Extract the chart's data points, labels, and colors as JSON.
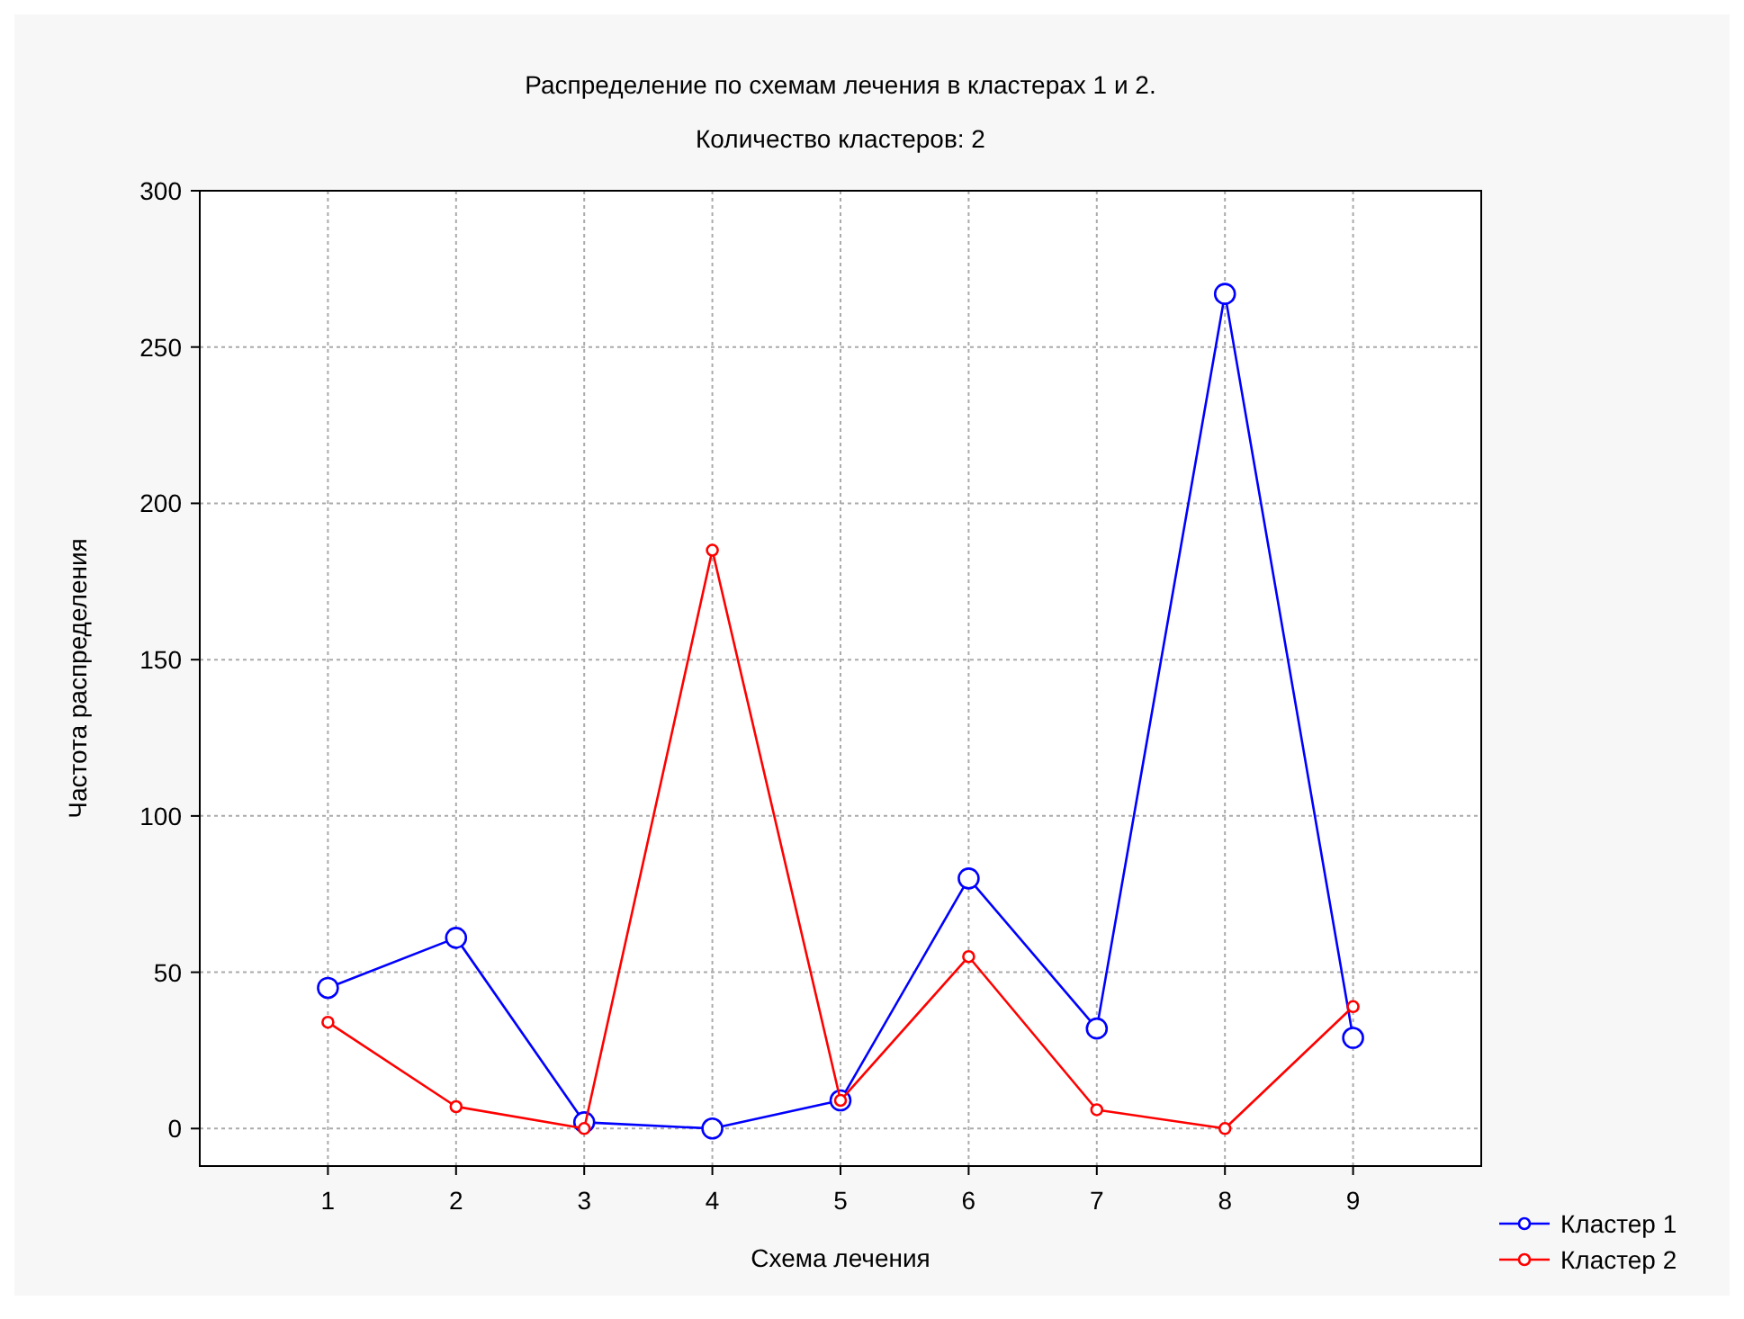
{
  "chart_data": {
    "type": "line",
    "title": "Распределение по схемам лечения в кластерах 1 и 2.",
    "subtitle": "Количество кластеров: 2",
    "xlabel": "Схема лечения",
    "ylabel": "Частота распределения",
    "x": [
      1,
      2,
      3,
      4,
      5,
      6,
      7,
      8,
      9
    ],
    "xlim": [
      0,
      10
    ],
    "xticks": [
      1,
      2,
      3,
      4,
      5,
      6,
      7,
      8,
      9
    ],
    "ylim": [
      -12,
      300
    ],
    "yticks": [
      0,
      50,
      100,
      150,
      200,
      250,
      300
    ],
    "series": [
      {
        "name": "Кластер 1",
        "color": "#0000ff",
        "values": [
          45,
          61,
          2,
          0,
          9,
          80,
          32,
          267,
          29
        ]
      },
      {
        "name": "Кластер 2",
        "color": "#ff0000",
        "values": [
          34,
          7,
          0,
          185,
          9,
          55,
          6,
          0,
          39
        ]
      }
    ],
    "grid": true,
    "marker": "circle",
    "line_style": "solid",
    "legend": "bottom right"
  }
}
